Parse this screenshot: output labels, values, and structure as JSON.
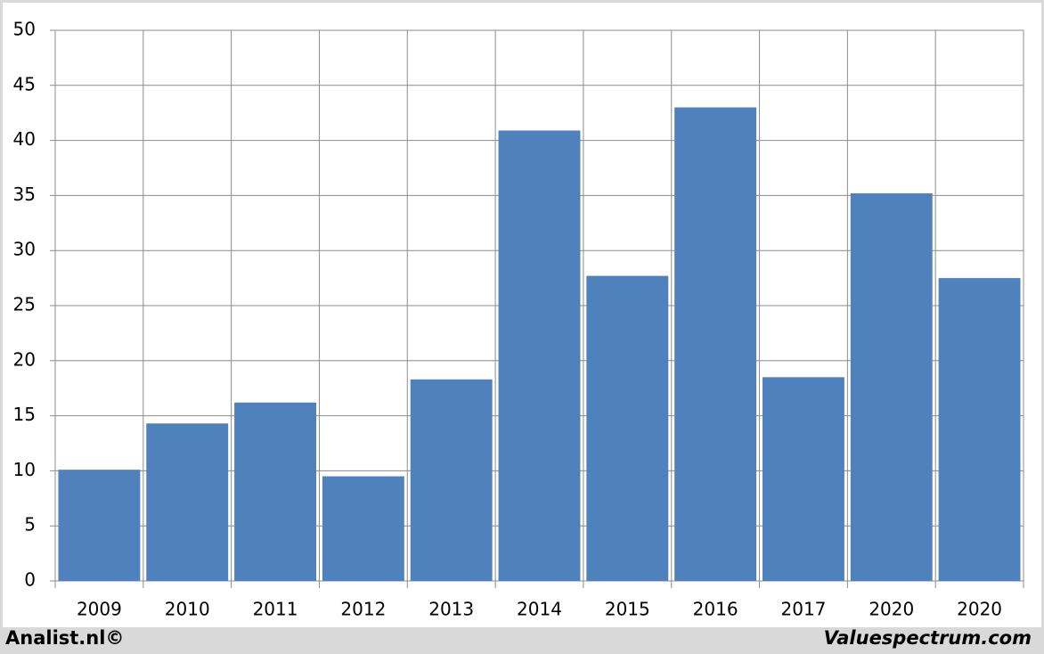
{
  "chart_data": {
    "type": "bar",
    "categories": [
      "2009",
      "2010",
      "2011",
      "2012",
      "2013",
      "2014",
      "2015",
      "2016",
      "2017",
      "2020",
      "2020"
    ],
    "values": [
      10.1,
      14.3,
      16.2,
      9.5,
      18.3,
      40.9,
      27.7,
      43.0,
      18.5,
      35.2,
      27.5
    ],
    "color": "#4f81bd",
    "ylim": [
      0,
      50
    ],
    "yticks": [
      0,
      5,
      10,
      15,
      20,
      25,
      30,
      35,
      40,
      45,
      50
    ],
    "grid": true,
    "source_left": "Analist.nl©",
    "source_right": "Valuespectrum.com"
  }
}
